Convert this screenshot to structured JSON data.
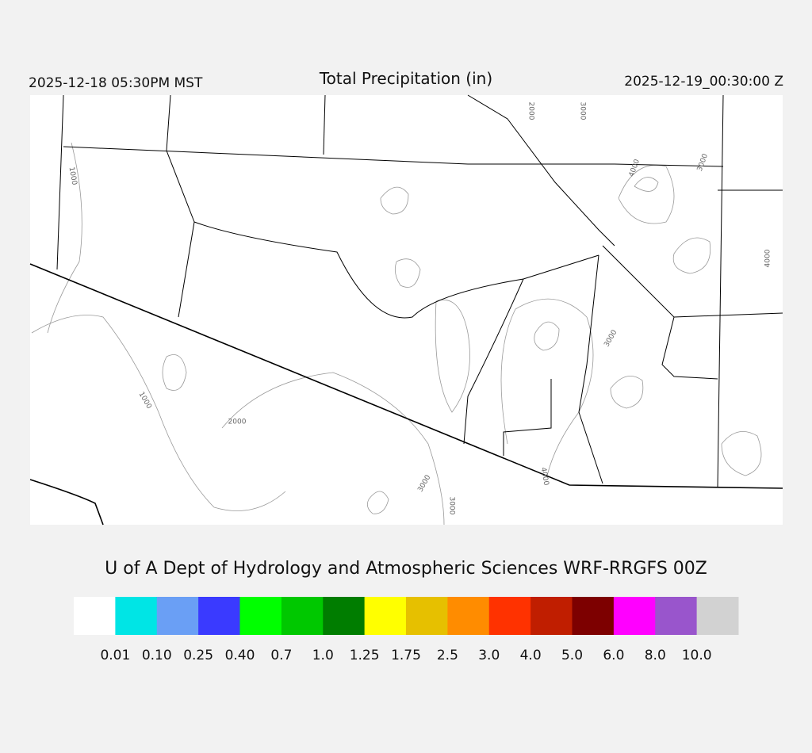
{
  "header": {
    "valid_local": "2025-12-18 05:30PM MST",
    "title": "Total Precipitation (in)",
    "valid_utc": "2025-12-19_00:30:00 Z"
  },
  "map": {
    "contour_labels": [
      "2000",
      "3000",
      "1000",
      "4000",
      "3000",
      "4000",
      "3000",
      "1000",
      "2000",
      "3000",
      "3000",
      "4000"
    ]
  },
  "footer": {
    "credit": "U of A Dept of Hydrology and Atmospheric Sciences WRF-RRGFS 00Z"
  },
  "colorbar": {
    "colors": [
      "#ffffff",
      "#00e5e5",
      "#6a9ff5",
      "#3a3aff",
      "#00ff00",
      "#00c800",
      "#007d00",
      "#ffff00",
      "#e6c000",
      "#ff8c00",
      "#ff3200",
      "#c01e00",
      "#7d0000",
      "#ff00ff",
      "#9955cc",
      "#d2d2d2"
    ],
    "labels": [
      "0.01",
      "0.10",
      "0.25",
      "0.40",
      "0.7",
      "1.0",
      "1.25",
      "1.75",
      "2.5",
      "3.0",
      "4.0",
      "5.0",
      "6.0",
      "8.0",
      "10.0"
    ]
  }
}
